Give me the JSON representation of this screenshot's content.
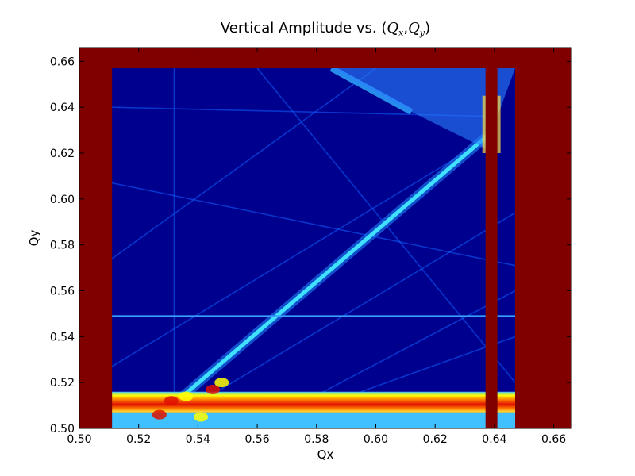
{
  "chart_data": {
    "type": "heatmap",
    "title": "Vertical Amplitude vs. (",
    "title_math": [
      "Q",
      "x",
      ",",
      "Q",
      "y",
      ")"
    ],
    "xlabel": "Qx",
    "ylabel": "Qy",
    "xlim": [
      0.5,
      0.666
    ],
    "ylim": [
      0.5,
      0.666
    ],
    "xticks": [
      0.5,
      0.52,
      0.54,
      0.56,
      0.58,
      0.6,
      0.62,
      0.64,
      0.66
    ],
    "yticks": [
      0.5,
      0.52,
      0.54,
      0.56,
      0.58,
      0.6,
      0.62,
      0.64,
      0.66
    ],
    "xtick_labels": [
      "0.50",
      "0.52",
      "0.54",
      "0.56",
      "0.58",
      "0.60",
      "0.62",
      "0.64",
      "0.66"
    ],
    "ytick_labels": [
      "0.50",
      "0.52",
      "0.54",
      "0.56",
      "0.58",
      "0.60",
      "0.62",
      "0.64",
      "0.66"
    ],
    "grid": false,
    "colormap": "jet",
    "regions": {
      "scan_x_range": [
        0.511,
        0.647
      ],
      "scan_y_range": [
        0.5,
        0.657
      ],
      "lost_band_left_x": [
        0.5,
        0.511
      ],
      "lost_band_top_y": [
        0.657,
        0.666
      ],
      "lost_band_right_x": [
        0.647,
        0.666
      ],
      "lost_band_vertical_x": [
        0.637,
        0.641
      ],
      "resonance_band_y": [
        0.507,
        0.516
      ]
    },
    "resonance_lines": [
      {
        "name": "main diagonal",
        "x": [
          0.533,
          0.638
        ],
        "y": [
          0.512,
          0.628
        ]
      },
      {
        "name": "upper ridge",
        "x": [
          0.585,
          0.612
        ],
        "y": [
          0.657,
          0.638
        ]
      },
      {
        "name": "horizontal",
        "x": [
          0.511,
          0.647
        ],
        "y": [
          0.549,
          0.549
        ]
      }
    ],
    "colors": {
      "background": "#00008f",
      "lost": "#800000",
      "band_red": "#e01000",
      "band_orange": "#ff8000",
      "band_yellow": "#ffff00",
      "band_cyan": "#40c0ff",
      "line_blue": "#1060ff",
      "ridge": "#30b0ff"
    }
  }
}
